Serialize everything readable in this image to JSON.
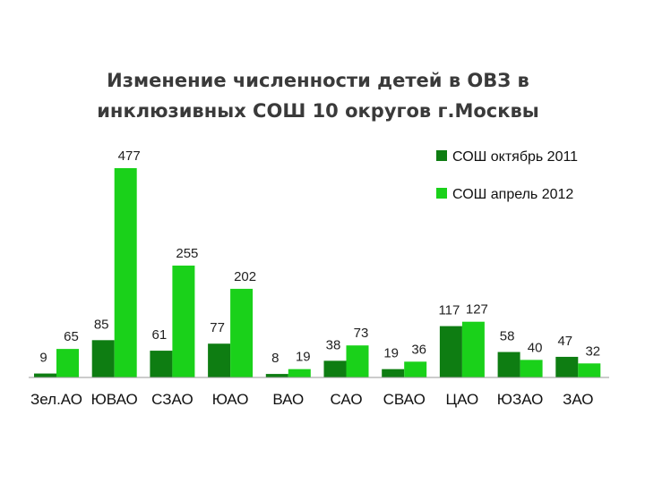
{
  "chart_data": {
    "type": "bar",
    "title": [
      "Изменение численности детей в ОВЗ в",
      "инклюзивных  СОШ 10 округов г.Москвы"
    ],
    "categories": [
      "Зел.АО",
      "ЮВАО",
      "СЗАО",
      "ЮАО",
      "ВАО",
      "САО",
      "СВАО",
      "ЦАО",
      "ЮЗАО",
      "ЗАО"
    ],
    "series": [
      {
        "name": "СОШ октябрь 2011",
        "color": "#0e7d12",
        "values": [
          9,
          85,
          61,
          77,
          8,
          38,
          19,
          117,
          58,
          47
        ]
      },
      {
        "name": "СОШ  апрель 2012",
        "color": "#1ad11a",
        "values": [
          65,
          477,
          255,
          202,
          19,
          73,
          36,
          127,
          40,
          32
        ]
      }
    ],
    "ylim": [
      0,
      500
    ],
    "grid": false,
    "legend": "top-right"
  }
}
